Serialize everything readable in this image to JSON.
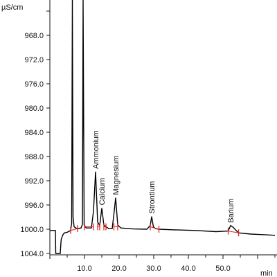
{
  "chart_data": {
    "type": "line",
    "xlabel": "min",
    "ylabel": "µS/cm",
    "xlim": [
      0,
      65
    ],
    "ylim": [
      964.0,
      1004.0
    ],
    "y_axis_inverted": true,
    "x_ticks": [
      "10.0",
      "20.0",
      "30.0",
      "40.0",
      "50.0"
    ],
    "y_ticks": [
      "968.0",
      "972.0",
      "976.0",
      "980.0",
      "984.0",
      "988.0",
      "992.0",
      "996.0",
      "1000.0",
      "1004.0"
    ],
    "baseline_trace": {
      "x": [
        0,
        1.6,
        1.7,
        3.0,
        3.2,
        3.3,
        3.8,
        4.2,
        5.0,
        6.0,
        6.3,
        6.5,
        6.7,
        7.0,
        7.5,
        8.0,
        9.0,
        9.4,
        9.6,
        9.9,
        10.5,
        12.0,
        12.6,
        13.2,
        13.8,
        14.4,
        15.0,
        15.6,
        16.2,
        17.0,
        18.0,
        18.5,
        19.0,
        19.6,
        20.5,
        24.0,
        28.0,
        29.0,
        29.4,
        29.9,
        30.5,
        31.5,
        36.0,
        42.0,
        48.0,
        51.5,
        52.2,
        53.0,
        53.6,
        54.5,
        58.0,
        62.0,
        65.0
      ],
      "y": [
        1000.2,
        1000.2,
        1004.0,
        1004.0,
        1002.2,
        1001.6,
        1000.9,
        1000.6,
        1000.5,
        1000.2,
        999.0,
        960.0,
        998.0,
        999.6,
        999.8,
        999.9,
        999.8,
        999.2,
        960.0,
        999.3,
        999.8,
        999.8,
        997.0,
        990.5,
        998.8,
        999.4,
        996.5,
        999.3,
        999.6,
        999.9,
        999.9,
        997.5,
        994.8,
        999.3,
        999.8,
        999.95,
        1000.0,
        999.4,
        997.9,
        999.6,
        999.9,
        1000.0,
        1000.1,
        1000.2,
        1000.4,
        1000.3,
        999.4,
        999.7,
        1000.1,
        1000.6,
        1000.8,
        1000.9,
        1001.0
      ]
    },
    "peaks": [
      {
        "name": "Ammonium",
        "x": 13.2,
        "y": 990.5
      },
      {
        "name": "Calcium",
        "x": 15.0,
        "y": 996.5
      },
      {
        "name": "Magnesium",
        "x": 19.0,
        "y": 994.8
      },
      {
        "name": "Strontium",
        "x": 29.4,
        "y": 997.9
      },
      {
        "name": "Barium",
        "x": 52.2,
        "y": 999.4
      }
    ],
    "integration_marks_x": [
      6.0,
      8.0,
      10.0,
      12.6,
      13.8,
      14.4,
      15.6,
      16.2,
      18.5,
      19.6,
      29.0,
      31.5,
      51.5,
      54.5
    ]
  }
}
